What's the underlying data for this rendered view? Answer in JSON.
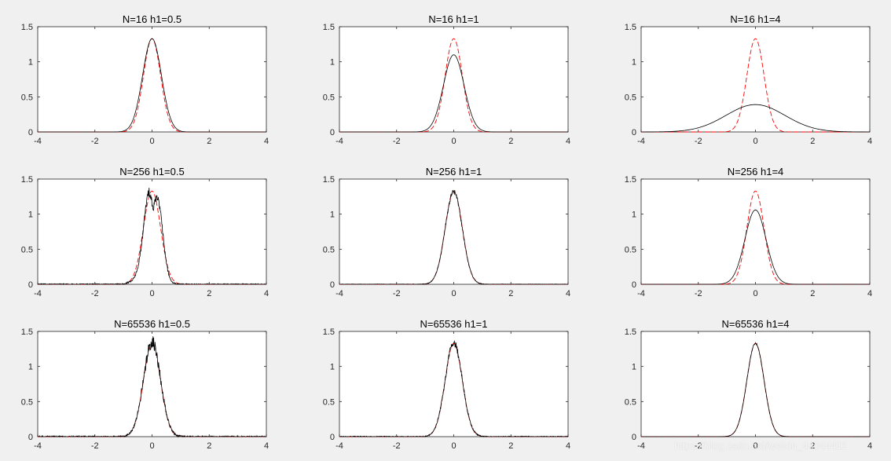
{
  "watermark": "https://blog.csdn.net/weixin_44044411",
  "colors": {
    "background": "#f0f0f0",
    "axes": "#ffffff",
    "estimate": "#000000",
    "reference": "#ff0000"
  },
  "chart_data": [
    {
      "type": "line",
      "title": "N=16  h1=0.5",
      "xlim": [
        -4,
        4
      ],
      "ylim": [
        0,
        1.5
      ],
      "xticks": [
        -4,
        -2,
        0,
        2,
        4
      ],
      "yticks": [
        0,
        0.5,
        1,
        1.5
      ],
      "grid": false,
      "series": [
        {
          "style": "solid",
          "width": 0.33,
          "amplitude": 1.33,
          "noise": 0
        },
        {
          "style": "dashed",
          "width": 0.3,
          "amplitude": 1.33
        }
      ]
    },
    {
      "type": "line",
      "title": "N=16  h1=1",
      "xlim": [
        -4,
        4
      ],
      "ylim": [
        0,
        1.5
      ],
      "xticks": [
        -4,
        -2,
        0,
        2,
        4
      ],
      "yticks": [
        0,
        0.5,
        1,
        1.5
      ],
      "grid": false,
      "series": [
        {
          "style": "solid",
          "width": 0.36,
          "amplitude": 1.1,
          "noise": 0
        },
        {
          "style": "dashed",
          "width": 0.3,
          "amplitude": 1.33
        }
      ]
    },
    {
      "type": "line",
      "title": "N=16  h1=4",
      "xlim": [
        -4,
        4
      ],
      "ylim": [
        0,
        1.5
      ],
      "xticks": [
        -4,
        -2,
        0,
        2,
        4
      ],
      "yticks": [
        0,
        0.5,
        1,
        1.5
      ],
      "grid": false,
      "series": [
        {
          "style": "solid",
          "width": 1.03,
          "amplitude": 0.39,
          "noise": 0
        },
        {
          "style": "dashed",
          "width": 0.3,
          "amplitude": 1.33
        }
      ]
    },
    {
      "type": "line",
      "title": "N=256  h1=0.5",
      "xlim": [
        -4,
        4
      ],
      "ylim": [
        0,
        1.5
      ],
      "xticks": [
        -4,
        -2,
        0,
        2,
        4
      ],
      "yticks": [
        0,
        0.5,
        1,
        1.5
      ],
      "grid": false,
      "series": [
        {
          "style": "solid",
          "width": 0.3,
          "amplitude": 1.38,
          "noise": 0.06,
          "bimodal": true
        },
        {
          "style": "dashed",
          "width": 0.3,
          "amplitude": 1.33
        }
      ]
    },
    {
      "type": "line",
      "title": "N=256  h1=1",
      "xlim": [
        -4,
        4
      ],
      "ylim": [
        0,
        1.5
      ],
      "xticks": [
        -4,
        -2,
        0,
        2,
        4
      ],
      "yticks": [
        0,
        0.5,
        1,
        1.5
      ],
      "grid": false,
      "series": [
        {
          "style": "solid",
          "width": 0.3,
          "amplitude": 1.32,
          "noise": 0.03
        },
        {
          "style": "dashed",
          "width": 0.3,
          "amplitude": 1.33
        }
      ]
    },
    {
      "type": "line",
      "title": "N=256  h1=4",
      "xlim": [
        -4,
        4
      ],
      "ylim": [
        0,
        1.5
      ],
      "xticks": [
        -4,
        -2,
        0,
        2,
        4
      ],
      "yticks": [
        0,
        0.5,
        1,
        1.5
      ],
      "grid": false,
      "series": [
        {
          "style": "solid",
          "width": 0.37,
          "amplitude": 1.06,
          "noise": 0
        },
        {
          "style": "dashed",
          "width": 0.3,
          "amplitude": 1.33
        }
      ]
    },
    {
      "type": "line",
      "title": "N=65536  h1=0.5",
      "xlim": [
        -4,
        4
      ],
      "ylim": [
        0,
        1.5
      ],
      "xticks": [
        -4,
        -2,
        0,
        2,
        4
      ],
      "yticks": [
        0,
        0.5,
        1,
        1.5
      ],
      "grid": false,
      "series": [
        {
          "style": "solid",
          "width": 0.3,
          "amplitude": 1.35,
          "noise": 0.08
        },
        {
          "style": "dashed",
          "width": 0.3,
          "amplitude": 1.33
        }
      ]
    },
    {
      "type": "line",
      "title": "N=65536  h1=1",
      "xlim": [
        -4,
        4
      ],
      "ylim": [
        0,
        1.5
      ],
      "xticks": [
        -4,
        -2,
        0,
        2,
        4
      ],
      "yticks": [
        0,
        0.5,
        1,
        1.5
      ],
      "grid": false,
      "series": [
        {
          "style": "solid",
          "width": 0.3,
          "amplitude": 1.34,
          "noise": 0.05
        },
        {
          "style": "dashed",
          "width": 0.3,
          "amplitude": 1.33
        }
      ]
    },
    {
      "type": "line",
      "title": "N=65536  h1=4",
      "xlim": [
        -4,
        4
      ],
      "ylim": [
        0,
        1.5
      ],
      "xticks": [
        -4,
        -2,
        0,
        2,
        4
      ],
      "yticks": [
        0,
        0.5,
        1,
        1.5
      ],
      "grid": false,
      "series": [
        {
          "style": "solid",
          "width": 0.3,
          "amplitude": 1.33,
          "noise": 0.01
        },
        {
          "style": "dashed",
          "width": 0.3,
          "amplitude": 1.33
        }
      ]
    }
  ]
}
